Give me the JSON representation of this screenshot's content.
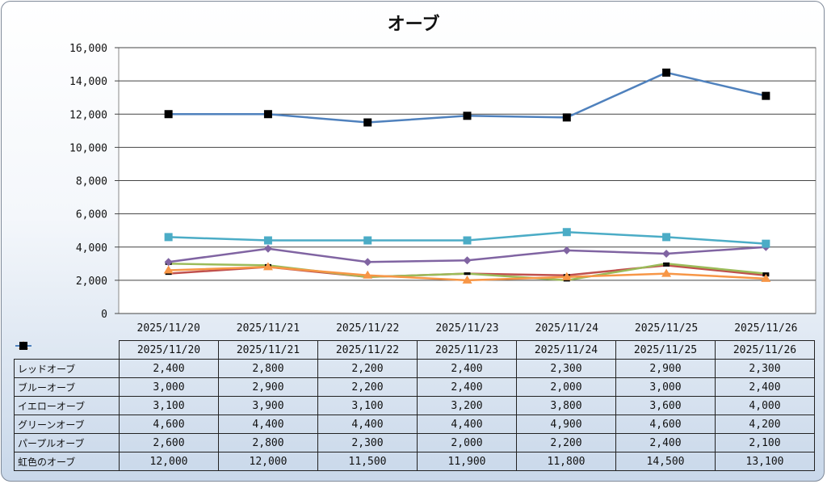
{
  "chart_data": {
    "type": "line",
    "title": "オーブ",
    "categories": [
      "2025/11/20",
      "2025/11/21",
      "2025/11/22",
      "2025/11/23",
      "2025/11/24",
      "2025/11/25",
      "2025/11/26"
    ],
    "ylim": [
      0,
      16000
    ],
    "yticks": [
      "0",
      "2,000",
      "4,000",
      "6,000",
      "8,000",
      "10,000",
      "12,000",
      "14,000",
      "16,000"
    ],
    "grid": true,
    "legend": "data-table",
    "series": [
      {
        "name": "レッドオーブ",
        "color": "#c0504d",
        "marker": "dash",
        "values": [
          2400,
          2800,
          2200,
          2400,
          2300,
          2900,
          2300
        ],
        "labels": [
          "2,400",
          "2,800",
          "2,200",
          "2,400",
          "2,300",
          "2,900",
          "2,300"
        ]
      },
      {
        "name": "ブルーオーブ",
        "color": "#9bbb59",
        "marker": "dash",
        "values": [
          3000,
          2900,
          2200,
          2400,
          2000,
          3000,
          2400
        ],
        "labels": [
          "3,000",
          "2,900",
          "2,200",
          "2,400",
          "2,000",
          "3,000",
          "2,400"
        ]
      },
      {
        "name": "イエローオーブ",
        "color": "#8064a2",
        "marker": "diamond",
        "values": [
          3100,
          3900,
          3100,
          3200,
          3800,
          3600,
          4000
        ],
        "labels": [
          "3,100",
          "3,900",
          "3,100",
          "3,200",
          "3,800",
          "3,600",
          "4,000"
        ]
      },
      {
        "name": "グリーンオーブ",
        "color": "#4bacc6",
        "marker": "square",
        "values": [
          4600,
          4400,
          4400,
          4400,
          4900,
          4600,
          4200
        ],
        "labels": [
          "4,600",
          "4,400",
          "4,400",
          "4,400",
          "4,900",
          "4,600",
          "4,200"
        ]
      },
      {
        "name": "パープルオーブ",
        "color": "#f79646",
        "marker": "triangle",
        "values": [
          2600,
          2800,
          2300,
          2000,
          2200,
          2400,
          2100
        ],
        "labels": [
          "2,600",
          "2,800",
          "2,300",
          "2,000",
          "2,200",
          "2,400",
          "2,100"
        ]
      },
      {
        "name": "虹色のオーブ",
        "color": "#4f81bd",
        "marker": "black-square",
        "values": [
          12000,
          12000,
          11500,
          11900,
          11800,
          14500,
          13100
        ],
        "labels": [
          "12,000",
          "12,000",
          "11,500",
          "11,900",
          "11,800",
          "14,500",
          "13,100"
        ]
      }
    ]
  }
}
